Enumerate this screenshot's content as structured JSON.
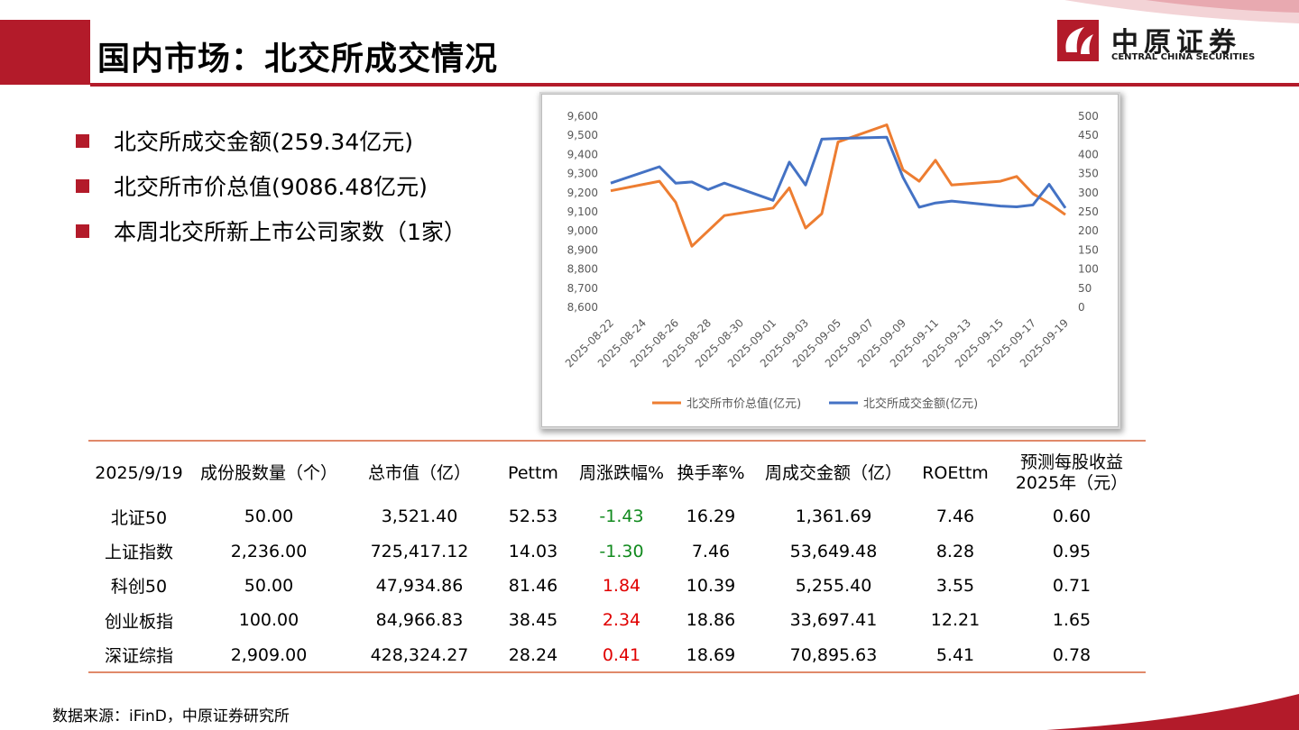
{
  "header": {
    "title": "国内市场：北交所成交情况"
  },
  "logo": {
    "name_cn": "中原证券",
    "name_en": "CENTRAL CHINA SECURITIES"
  },
  "colors": {
    "brand": "#b31b2a",
    "series_value": "#ed7d31",
    "series_turnover": "#4472c4",
    "negative": "#118a1e",
    "positive": "#e00000"
  },
  "bullets": [
    "北交所成交金额(259.34亿元)",
    "北交所市价总值(9086.48亿元)",
    "本周北交所新上市公司家数（1家）"
  ],
  "chart_data": {
    "type": "line",
    "x": [
      "2025-08-22",
      "2025-08-25",
      "2025-08-26",
      "2025-08-27",
      "2025-08-28",
      "2025-08-29",
      "2025-09-01",
      "2025-09-02",
      "2025-09-03",
      "2025-09-04",
      "2025-09-05",
      "2025-09-08",
      "2025-09-09",
      "2025-09-10",
      "2025-09-11",
      "2025-09-12",
      "2025-09-15",
      "2025-09-16",
      "2025-09-17",
      "2025-09-18",
      "2025-09-19"
    ],
    "x_tick_labels": [
      "2025-08-22",
      "2025-08-24",
      "2025-08-26",
      "2025-08-28",
      "2025-08-30",
      "2025-09-01",
      "2025-09-03",
      "2025-09-05",
      "2025-09-07",
      "2025-09-09",
      "2025-09-11",
      "2025-09-13",
      "2025-09-15",
      "2025-09-17",
      "2025-09-19"
    ],
    "series": [
      {
        "name": "北交所市价总值(亿元)",
        "axis": "left",
        "color": "#ed7d31",
        "values": [
          9210,
          9260,
          9150,
          8920,
          9000,
          9080,
          9120,
          9225,
          9015,
          9090,
          9465,
          9555,
          9320,
          9260,
          9370,
          9240,
          9260,
          9285,
          9195,
          9145,
          9085
        ]
      },
      {
        "name": "北交所成交金额(亿元)",
        "axis": "right",
        "color": "#4472c4",
        "values": [
          325,
          368,
          325,
          328,
          308,
          325,
          280,
          380,
          320,
          440,
          442,
          445,
          340,
          262,
          273,
          278,
          265,
          263,
          268,
          322,
          260
        ]
      }
    ],
    "left_axis": {
      "min": 8600,
      "max": 9600,
      "ticks": [
        "8,600",
        "8,700",
        "8,800",
        "8,900",
        "9,000",
        "9,100",
        "9,200",
        "9,300",
        "9,400",
        "9,500",
        "9,600"
      ]
    },
    "right_axis": {
      "min": 0,
      "max": 500,
      "ticks": [
        "0",
        "50",
        "100",
        "150",
        "200",
        "250",
        "300",
        "350",
        "400",
        "450",
        "500"
      ]
    },
    "legend": "bottom",
    "grid": false
  },
  "table": {
    "headers": [
      "2025/9/19",
      "成份股数量（个）",
      "总市值（亿）",
      "Pettm",
      "周涨跌幅%",
      "换手率%",
      "周成交金额（亿）",
      "ROEttm",
      "预测每股收益2025年（元）"
    ],
    "rows": [
      [
        "北证50",
        "50.00",
        "3,521.40",
        "52.53",
        "-1.43",
        "16.29",
        "1,361.69",
        "7.46",
        "0.60"
      ],
      [
        "上证指数",
        "2,236.00",
        "725,417.12",
        "14.03",
        "-1.30",
        "7.46",
        "53,649.48",
        "8.28",
        "0.95"
      ],
      [
        "科创50",
        "50.00",
        "47,934.86",
        "81.46",
        "1.84",
        "10.39",
        "5,255.40",
        "3.55",
        "0.71"
      ],
      [
        "创业板指",
        "100.00",
        "84,966.83",
        "38.45",
        "2.34",
        "18.86",
        "33,697.41",
        "12.21",
        "1.65"
      ],
      [
        "深证综指",
        "2,909.00",
        "428,324.27",
        "28.24",
        "0.41",
        "18.69",
        "70,895.63",
        "5.41",
        "0.78"
      ]
    ]
  },
  "footer": {
    "source": "数据来源：iFinD，中原证券研究所"
  }
}
